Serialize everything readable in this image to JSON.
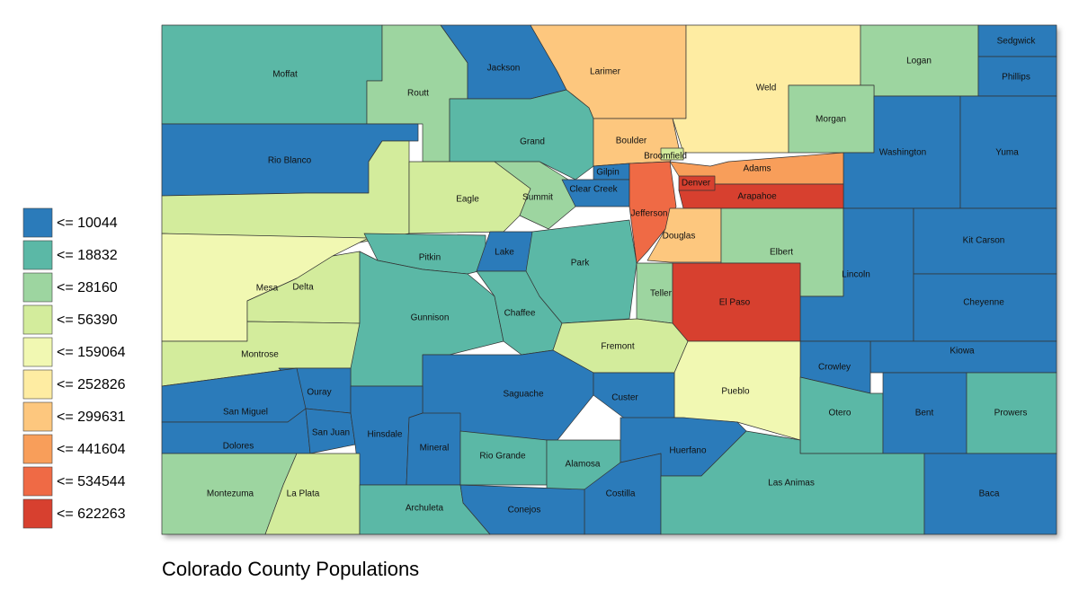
{
  "title": "Colorado County Populations",
  "legend": [
    {
      "label": "<= 10044",
      "color": "#2b7bba"
    },
    {
      "label": "<= 18832",
      "color": "#5bb8a6"
    },
    {
      "label": "<= 28160",
      "color": "#9dd5a0"
    },
    {
      "label": "<= 56390",
      "color": "#d3ec9c"
    },
    {
      "label": "<= 159064",
      "color": "#f1f8b2"
    },
    {
      "label": "<= 252826",
      "color": "#feeca2"
    },
    {
      "label": "<= 299631",
      "color": "#fdc77e"
    },
    {
      "label": "<= 441604",
      "color": "#f89e5a"
    },
    {
      "label": "<= 534544",
      "color": "#ef6a45"
    },
    {
      "label": "<= 622263",
      "color": "#d7402f"
    }
  ],
  "counties": [
    {
      "name": "Moffat",
      "color": "#5bb8a6"
    },
    {
      "name": "Routt",
      "color": "#9dd5a0"
    },
    {
      "name": "Jackson",
      "color": "#2b7bba"
    },
    {
      "name": "Larimer",
      "color": "#fdc77e"
    },
    {
      "name": "Weld",
      "color": "#feeca2"
    },
    {
      "name": "Logan",
      "color": "#9dd5a0"
    },
    {
      "name": "Sedgwick",
      "color": "#2b7bba"
    },
    {
      "name": "Phillips",
      "color": "#2b7bba"
    },
    {
      "name": "Morgan",
      "color": "#9dd5a0"
    },
    {
      "name": "Washington",
      "color": "#2b7bba"
    },
    {
      "name": "Yuma",
      "color": "#2b7bba"
    },
    {
      "name": "Rio Blanco",
      "color": "#2b7bba"
    },
    {
      "color": "#d3ec9c"
    },
    {
      "name": "Grand",
      "color": "#5bb8a6"
    },
    {
      "name": "Boulder",
      "color": "#fdc77e"
    },
    {
      "name": "Eagle",
      "color": "#d3ec9c"
    },
    {
      "name": "Summit",
      "color": "#9dd5a0"
    },
    {
      "name": "Gilpin",
      "color": "#2b7bba"
    },
    {
      "name": "Clear Creek",
      "color": "#2b7bba"
    },
    {
      "name": "Jefferson",
      "color": "#ef6a45"
    },
    {
      "name": "Adams",
      "color": "#f89e5a"
    },
    {
      "name": "Arapahoe",
      "color": "#d7402f"
    },
    {
      "name": "Denver",
      "color": "#d7402f"
    },
    {
      "name": "Broomfield",
      "color": "#d3ec9c"
    },
    {
      "name": "Douglas",
      "color": "#fdc77e"
    },
    {
      "name": "Elbert",
      "color": "#9dd5a0"
    },
    {
      "name": "Lincoln",
      "color": "#2b7bba"
    },
    {
      "name": "Kit Carson",
      "color": "#2b7bba"
    },
    {
      "name": "Cheyenne",
      "color": "#2b7bba"
    },
    {
      "name": "Kiowa",
      "color": "#2b7bba"
    },
    {
      "name": "Mesa",
      "color": "#f1f8b2"
    },
    {
      "name": "Delta",
      "color": "#d3ec9c"
    },
    {
      "name": "Montrose",
      "color": "#d3ec9c"
    },
    {
      "name": "Pitkin",
      "color": "#5bb8a6"
    },
    {
      "name": "Lake",
      "color": "#2b7bba"
    },
    {
      "name": "Park",
      "color": "#5bb8a6"
    },
    {
      "name": "Teller",
      "color": "#9dd5a0"
    },
    {
      "name": "El Paso",
      "color": "#d7402f"
    },
    {
      "name": "Gunnison",
      "color": "#5bb8a6"
    },
    {
      "name": "Chaffee",
      "color": "#5bb8a6"
    },
    {
      "name": "Fremont",
      "color": "#d3ec9c"
    },
    {
      "name": "Crowley",
      "color": "#2b7bba"
    },
    {
      "name": "Pueblo",
      "color": "#f1f8b2"
    },
    {
      "name": "Otero",
      "color": "#5bb8a6"
    },
    {
      "name": "Bent",
      "color": "#2b7bba"
    },
    {
      "name": "Prowers",
      "color": "#5bb8a6"
    },
    {
      "name": "Saguache",
      "color": "#2b7bba"
    },
    {
      "name": "Custer",
      "color": "#2b7bba"
    },
    {
      "name": "Ouray",
      "color": "#2b7bba"
    },
    {
      "name": "San Miguel",
      "color": "#2b7bba"
    },
    {
      "name": "Dolores",
      "color": "#2b7bba"
    },
    {
      "name": "San Juan",
      "color": "#2b7bba"
    },
    {
      "name": "Hinsdale",
      "color": "#2b7bba"
    },
    {
      "name": "Mineral",
      "color": "#2b7bba"
    },
    {
      "name": "Rio Grande",
      "color": "#5bb8a6"
    },
    {
      "name": "Alamosa",
      "color": "#5bb8a6"
    },
    {
      "name": "Huerfano",
      "color": "#2b7bba"
    },
    {
      "name": "Costilla",
      "color": "#2b7bba"
    },
    {
      "name": "Las Animas",
      "color": "#5bb8a6"
    },
    {
      "name": "Baca",
      "color": "#2b7bba"
    },
    {
      "name": "Montezuma",
      "color": "#9dd5a0"
    },
    {
      "name": "La Plata",
      "color": "#d3ec9c"
    },
    {
      "name": "Archuleta",
      "color": "#5bb8a6"
    },
    {
      "name": "Conejos",
      "color": "#2b7bba"
    }
  ]
}
